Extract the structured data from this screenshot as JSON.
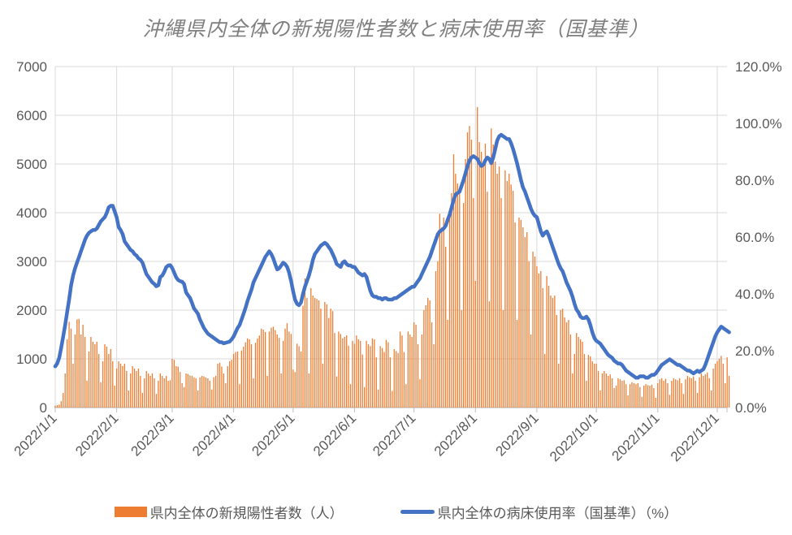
{
  "title": "沖縄県内全体の新規陽性者数と病床使用率（国基準）",
  "legend": [
    {
      "label": "県内全体の新規陽性者数（人）",
      "type": "bar",
      "color": "#ED7D31"
    },
    {
      "label": "県内全体の病床使用率（国基準）（%）",
      "type": "line",
      "color": "#4472C4"
    }
  ],
  "colors": {
    "bar": "#ED7D31",
    "line": "#4472C4",
    "gridline": "#D9D9D9",
    "axis": "#BFBFBF",
    "tick_label": "#595959",
    "title": "#7F7F7F"
  },
  "left_axis": {
    "ticks": [
      {
        "label": "0",
        "value": 0
      },
      {
        "label": "1000",
        "value": 1000
      },
      {
        "label": "2000",
        "value": 2000
      },
      {
        "label": "3000",
        "value": 3000
      },
      {
        "label": "4000",
        "value": 4000
      },
      {
        "label": "5000",
        "value": 5000
      },
      {
        "label": "6000",
        "value": 6000
      },
      {
        "label": "7000",
        "value": 7000
      }
    ],
    "min": 0,
    "max": 7000
  },
  "right_axis": {
    "ticks": [
      {
        "label": "0.0%",
        "value": 0
      },
      {
        "label": "20.0%",
        "value": 20
      },
      {
        "label": "40.0%",
        "value": 40
      },
      {
        "label": "60.0%",
        "value": 60
      },
      {
        "label": "80.0%",
        "value": 80
      },
      {
        "label": "100.0%",
        "value": 100
      },
      {
        "label": "120.0%",
        "value": 120
      }
    ],
    "min": 0,
    "max": 120
  },
  "x_axis": {
    "ticks": [
      {
        "label": "2022/1/1",
        "day": 0
      },
      {
        "label": "2022/2/1",
        "day": 31
      },
      {
        "label": "2022/3/1",
        "day": 59
      },
      {
        "label": "2022/4/1",
        "day": 90
      },
      {
        "label": "2022/5/1",
        "day": 120
      },
      {
        "label": "2022/6/1",
        "day": 151
      },
      {
        "label": "2022/7/1",
        "day": 181
      },
      {
        "label": "2022/8/1",
        "day": 212
      },
      {
        "label": "2022/9/1",
        "day": 243
      },
      {
        "label": "2022/10/1",
        "day": 273
      },
      {
        "label": "2022/11/1",
        "day": 304
      },
      {
        "label": "2022/12/1",
        "day": 334
      }
    ]
  },
  "chart_data": {
    "type": "combo",
    "title": "沖縄県内全体の新規陽性者数と病床使用率（国基準）",
    "frequency": "daily",
    "start_date": "2022/1/1",
    "end_date": "2022/12/7",
    "left_ylim": [
      0,
      7000
    ],
    "right_ylim": [
      0,
      120
    ],
    "grid": true,
    "legend_position": "bottom",
    "series": [
      {
        "name": "県内全体の新規陽性者数（人）",
        "type": "bar",
        "axis": "left",
        "color": "#ED7D31",
        "values": [
          40,
          50,
          60,
          130,
          300,
          700,
          1400,
          1760,
          1620,
          900,
          1500,
          1810,
          1820,
          1500,
          1700,
          1450,
          550,
          1150,
          1450,
          1350,
          1300,
          1350,
          1100,
          520,
          950,
          1300,
          1250,
          1100,
          1200,
          950,
          450,
          800,
          950,
          900,
          850,
          900,
          750,
          350,
          700,
          850,
          800,
          750,
          800,
          650,
          300,
          600,
          750,
          700,
          650,
          700,
          600,
          280,
          550,
          700,
          650,
          600,
          650,
          550,
          560,
          1000,
          980,
          850,
          840,
          730,
          500,
          420,
          700,
          690,
          660,
          650,
          620,
          600,
          350,
          620,
          650,
          640,
          620,
          600,
          550,
          370,
          620,
          650,
          900,
          920,
          840,
          700,
          500,
          850,
          950,
          980,
          1100,
          1140,
          1150,
          480,
          1170,
          1250,
          1340,
          1420,
          1400,
          1300,
          600,
          1330,
          1420,
          1480,
          1620,
          1600,
          1550,
          650,
          1560,
          1640,
          1660,
          1590,
          1500,
          1430,
          700,
          1370,
          1620,
          1730,
          1560,
          1510,
          780,
          730,
          1310,
          1260,
          1150,
          2090,
          2650,
          2250,
          700,
          2450,
          2300,
          2250,
          2230,
          2200,
          2030,
          900,
          2170,
          2120,
          1840,
          2030,
          1980,
          1530,
          640,
          1560,
          1510,
          1420,
          1450,
          1480,
          1270,
          480,
          1370,
          1310,
          1480,
          1400,
          1370,
          1090,
          420,
          1370,
          1300,
          1260,
          1420,
          1400,
          1030,
          370,
          1260,
          1220,
          1140,
          1390,
          1340,
          1030,
          340,
          1200,
          1160,
          1120,
          1560,
          1480,
          1140,
          480,
          1560,
          1500,
          1450,
          1750,
          1700,
          1300,
          580,
          1500,
          2000,
          2100,
          2250,
          2200,
          1750,
          1300,
          2800,
          3000,
          3980,
          3700,
          3900,
          3300,
          1800,
          4000,
          4400,
          5200,
          4800,
          4600,
          4500,
          2000,
          4200,
          5100,
          5650,
          5780,
          5500,
          4300,
          2600,
          6170,
          5450,
          5250,
          5000,
          5420,
          4430,
          2180,
          5730,
          5400,
          5050,
          4800,
          4950,
          4300,
          2000,
          4870,
          4650,
          4800,
          4580,
          4450,
          3800,
          1800,
          3900,
          3850,
          3700,
          3500,
          3600,
          3000,
          1500,
          3200,
          3100,
          2900,
          2750,
          2800,
          2450,
          1100,
          2700,
          2500,
          2300,
          2250,
          2300,
          1900,
          900,
          2000,
          2030,
          1850,
          1750,
          1800,
          1500,
          700,
          1100,
          1530,
          1450,
          1400,
          1350,
          1100,
          550,
          1080,
          1050,
          950,
          900,
          900,
          750,
          350,
          700,
          750,
          700,
          650,
          680,
          600,
          400,
          450,
          600,
          580,
          550,
          560,
          480,
          250,
          480,
          520,
          500,
          480,
          500,
          420,
          220,
          450,
          480,
          460,
          450,
          470,
          400,
          200,
          500,
          580,
          600,
          550,
          590,
          500,
          260,
          550,
          600,
          580,
          560,
          600,
          500,
          280,
          580,
          650,
          620,
          600,
          640,
          550,
          300,
          620,
          700,
          650,
          680,
          720,
          600,
          350,
          800,
          900,
          950,
          1000,
          1060,
          900,
          500,
          1030,
          650
        ]
      },
      {
        "name": "県内全体の病床使用率（国基準）（%）",
        "type": "line",
        "axis": "right",
        "color": "#4472C4",
        "values": [
          14.5,
          15.5,
          17.5,
          21,
          25,
          29,
          33.5,
          38,
          43,
          46.5,
          49,
          51,
          53,
          55,
          57,
          59,
          60.5,
          61.5,
          62,
          62.5,
          62.5,
          63,
          64.3,
          65.5,
          66.3,
          67,
          68.5,
          70.5,
          71,
          71,
          69,
          67,
          63.5,
          62.5,
          61,
          58.5,
          57.5,
          56.5,
          55.5,
          55,
          54,
          53.5,
          52.5,
          52,
          51,
          49,
          47,
          46,
          45,
          44,
          43.5,
          42.7,
          43,
          45.9,
          46.5,
          47.7,
          49.4,
          50,
          50.1,
          49.1,
          47.5,
          45.9,
          44.9,
          44.5,
          44.3,
          43.5,
          40.6,
          39.5,
          38.6,
          36.8,
          34.9,
          34,
          33,
          31,
          29.5,
          28,
          27,
          26,
          25.5,
          25,
          24.5,
          24,
          23.5,
          23,
          23,
          22.6,
          22.8,
          23,
          23.2,
          24,
          25,
          26.5,
          28,
          29,
          31,
          33,
          35,
          37.5,
          39.5,
          41.5,
          44,
          45.5,
          47,
          48.5,
          50,
          51.5,
          53,
          54,
          55,
          54,
          52.5,
          50.5,
          48.6,
          49,
          50,
          51,
          50.5,
          49.5,
          47.5,
          44.5,
          41,
          38,
          36.5,
          36,
          37,
          40,
          42.5,
          44.5,
          46.5,
          49,
          52,
          54,
          55,
          56,
          57,
          57.5,
          58,
          57.5,
          56.5,
          55.5,
          54,
          52.5,
          50.5,
          50,
          49.5,
          51,
          51.5,
          50.5,
          50,
          50,
          49.5,
          49.5,
          48.5,
          47.5,
          47,
          46.5,
          47,
          46,
          43.5,
          41,
          39.5,
          39,
          39,
          38.5,
          38.5,
          38,
          38.5,
          38.5,
          38,
          38,
          38,
          38.5,
          38.5,
          39,
          39.5,
          40,
          40.5,
          41,
          41.5,
          42,
          42.5,
          42.5,
          43.5,
          44.5,
          45.5,
          47,
          48.5,
          50,
          51.5,
          53,
          55,
          57,
          59,
          61,
          62,
          62.5,
          63,
          64,
          66,
          68,
          70.5,
          73,
          75,
          75.5,
          76,
          78,
          80,
          82.5,
          85,
          87,
          88,
          88.5,
          88,
          87.5,
          86,
          85,
          85.5,
          87,
          88,
          87.5,
          86,
          88,
          91,
          94,
          95.5,
          96,
          95.5,
          95,
          94.5,
          94.5,
          93,
          91,
          88.5,
          86,
          83,
          80,
          77.5,
          76,
          74,
          72,
          70,
          68.5,
          67.5,
          67,
          64.5,
          62,
          60.5,
          61.5,
          62,
          60.5,
          58.5,
          56.5,
          54.5,
          52.5,
          50.5,
          49,
          48,
          46,
          44,
          42.5,
          41,
          39,
          36.5,
          34.5,
          33.5,
          32,
          31.5,
          31.5,
          32,
          31,
          29,
          26.5,
          24.5,
          23.5,
          23,
          22.5,
          21.5,
          20.5,
          19.5,
          18.5,
          18,
          17.5,
          16.5,
          16,
          15.5,
          15.5,
          15,
          14,
          13,
          12.5,
          12,
          11.5,
          11,
          10.5,
          10.5,
          11,
          11,
          11,
          10.5,
          10.5,
          11,
          11.5,
          11.5,
          12,
          13,
          14,
          15,
          15.5,
          16,
          16.5,
          17,
          16.5,
          16,
          15.5,
          15,
          15,
          14.5,
          14,
          13.5,
          13,
          13,
          12.5,
          12,
          12.5,
          13,
          12.5,
          13,
          13.5,
          15,
          17,
          19,
          21,
          23,
          25,
          26.5,
          27.5,
          28.5,
          28,
          27.5,
          27,
          26.5
        ]
      }
    ]
  }
}
